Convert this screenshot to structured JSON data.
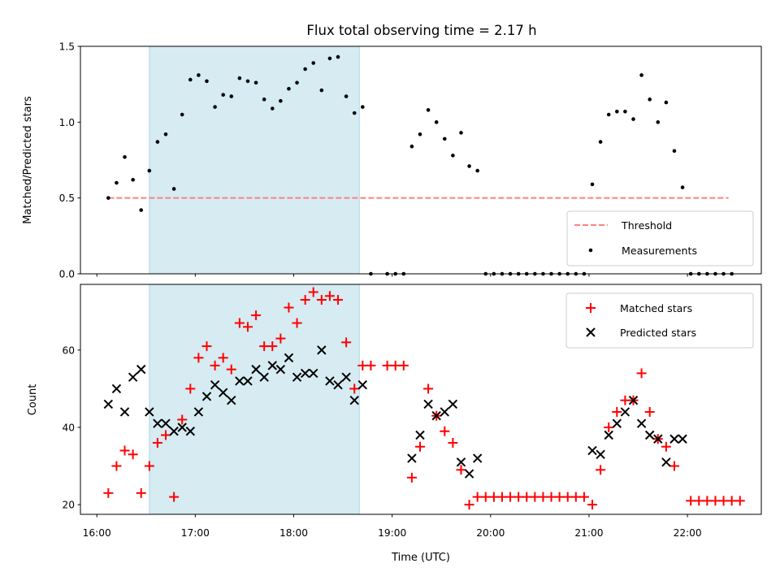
{
  "chart_data": [
    {
      "type": "scatter",
      "title": "Flux total observing time = 2.17 h",
      "xlabel": "",
      "ylabel": "Matched/Predicted stars",
      "xlim": [
        "15:50",
        "22:45"
      ],
      "ylim": [
        0,
        1.5
      ],
      "yticks": [
        "0.0",
        "0.5",
        "1.0",
        "1.5"
      ],
      "shaded_interval": [
        "16:32",
        "18:40"
      ],
      "legend_position": "lower-right",
      "threshold": {
        "name": "Threshold",
        "color": "#ff8080",
        "style": "dashed",
        "value": 0.5,
        "x_range": [
          "16:07",
          "22:25"
        ]
      },
      "series": [
        {
          "name": "Measurements",
          "color": "#000000",
          "marker": "dot",
          "points": [
            [
              "16:07",
              0.5
            ],
            [
              "16:12",
              0.6
            ],
            [
              "16:17",
              0.77
            ],
            [
              "16:22",
              0.62
            ],
            [
              "16:27",
              0.42
            ],
            [
              "16:32",
              0.68
            ],
            [
              "16:37",
              0.87
            ],
            [
              "16:42",
              0.92
            ],
            [
              "16:47",
              0.56
            ],
            [
              "16:52",
              1.05
            ],
            [
              "16:57",
              1.28
            ],
            [
              "17:02",
              1.31
            ],
            [
              "17:07",
              1.27
            ],
            [
              "17:12",
              1.1
            ],
            [
              "17:17",
              1.18
            ],
            [
              "17:22",
              1.17
            ],
            [
              "17:27",
              1.29
            ],
            [
              "17:32",
              1.27
            ],
            [
              "17:37",
              1.26
            ],
            [
              "17:42",
              1.15
            ],
            [
              "17:47",
              1.09
            ],
            [
              "17:52",
              1.14
            ],
            [
              "17:57",
              1.22
            ],
            [
              "18:02",
              1.26
            ],
            [
              "18:07",
              1.35
            ],
            [
              "18:12",
              1.39
            ],
            [
              "18:17",
              1.21
            ],
            [
              "18:22",
              1.42
            ],
            [
              "18:27",
              1.43
            ],
            [
              "18:32",
              1.17
            ],
            [
              "18:37",
              1.06
            ],
            [
              "18:42",
              1.1
            ],
            [
              "18:47",
              0
            ],
            [
              "18:57",
              0
            ],
            [
              "19:02",
              0
            ],
            [
              "19:07",
              0
            ],
            [
              "19:12",
              0.84
            ],
            [
              "19:17",
              0.92
            ],
            [
              "19:22",
              1.08
            ],
            [
              "19:27",
              1.0
            ],
            [
              "19:32",
              0.89
            ],
            [
              "19:37",
              0.78
            ],
            [
              "19:42",
              0.93
            ],
            [
              "19:47",
              0.71
            ],
            [
              "19:52",
              0.68
            ],
            [
              "19:57",
              0
            ],
            [
              "20:02",
              0
            ],
            [
              "20:07",
              0
            ],
            [
              "20:12",
              0
            ],
            [
              "20:17",
              0
            ],
            [
              "20:22",
              0
            ],
            [
              "20:27",
              0
            ],
            [
              "20:32",
              0
            ],
            [
              "20:37",
              0
            ],
            [
              "20:42",
              0
            ],
            [
              "20:47",
              0
            ],
            [
              "20:52",
              0
            ],
            [
              "20:57",
              0
            ],
            [
              "21:02",
              0.59
            ],
            [
              "21:07",
              0.87
            ],
            [
              "21:12",
              1.05
            ],
            [
              "21:17",
              1.07
            ],
            [
              "21:22",
              1.07
            ],
            [
              "21:27",
              1.02
            ],
            [
              "21:32",
              1.31
            ],
            [
              "21:37",
              1.15
            ],
            [
              "21:42",
              1.0
            ],
            [
              "21:47",
              1.13
            ],
            [
              "21:52",
              0.81
            ],
            [
              "21:57",
              0.57
            ],
            [
              "22:02",
              0
            ],
            [
              "22:07",
              0
            ],
            [
              "22:12",
              0
            ],
            [
              "22:17",
              0
            ],
            [
              "22:22",
              0
            ],
            [
              "22:27",
              0
            ]
          ]
        }
      ]
    },
    {
      "type": "scatter",
      "title": "",
      "xlabel": "Time (UTC)",
      "ylabel": "Count",
      "xlim": [
        "15:50",
        "22:45"
      ],
      "xticks": [
        "16:00",
        "17:00",
        "18:00",
        "19:00",
        "20:00",
        "21:00",
        "22:00"
      ],
      "ylim": [
        17.5,
        77
      ],
      "yticks": [
        "20",
        "40",
        "60"
      ],
      "shaded_interval": [
        "16:32",
        "18:40"
      ],
      "legend_position": "upper-right",
      "series": [
        {
          "name": "Matched stars",
          "color": "#ff0000",
          "marker": "plus",
          "points": [
            [
              "16:07",
              23
            ],
            [
              "16:12",
              30
            ],
            [
              "16:17",
              34
            ],
            [
              "16:22",
              33
            ],
            [
              "16:27",
              23
            ],
            [
              "16:32",
              30
            ],
            [
              "16:37",
              36
            ],
            [
              "16:42",
              38
            ],
            [
              "16:47",
              22
            ],
            [
              "16:52",
              42
            ],
            [
              "16:57",
              50
            ],
            [
              "17:02",
              58
            ],
            [
              "17:07",
              61
            ],
            [
              "17:12",
              56
            ],
            [
              "17:17",
              58
            ],
            [
              "17:22",
              55
            ],
            [
              "17:27",
              67
            ],
            [
              "17:32",
              66
            ],
            [
              "17:37",
              69
            ],
            [
              "17:42",
              61
            ],
            [
              "17:47",
              61
            ],
            [
              "17:52",
              63
            ],
            [
              "17:57",
              71
            ],
            [
              "18:02",
              67
            ],
            [
              "18:07",
              73
            ],
            [
              "18:12",
              75
            ],
            [
              "18:17",
              73
            ],
            [
              "18:22",
              74
            ],
            [
              "18:27",
              73
            ],
            [
              "18:32",
              62
            ],
            [
              "18:37",
              50
            ],
            [
              "18:42",
              56
            ],
            [
              "18:47",
              56
            ],
            [
              "18:57",
              56
            ],
            [
              "19:02",
              56
            ],
            [
              "19:07",
              56
            ],
            [
              "19:12",
              27
            ],
            [
              "19:17",
              35
            ],
            [
              "19:22",
              50
            ],
            [
              "19:27",
              43
            ],
            [
              "19:32",
              39
            ],
            [
              "19:37",
              36
            ],
            [
              "19:42",
              29
            ],
            [
              "19:47",
              20
            ],
            [
              "19:52",
              22
            ],
            [
              "19:57",
              22
            ],
            [
              "20:02",
              22
            ],
            [
              "20:07",
              22
            ],
            [
              "20:12",
              22
            ],
            [
              "20:17",
              22
            ],
            [
              "20:22",
              22
            ],
            [
              "20:27",
              22
            ],
            [
              "20:32",
              22
            ],
            [
              "20:37",
              22
            ],
            [
              "20:42",
              22
            ],
            [
              "20:47",
              22
            ],
            [
              "20:52",
              22
            ],
            [
              "20:57",
              22
            ],
            [
              "21:02",
              20
            ],
            [
              "21:07",
              29
            ],
            [
              "21:12",
              40
            ],
            [
              "21:17",
              44
            ],
            [
              "21:22",
              47
            ],
            [
              "21:27",
              47
            ],
            [
              "21:32",
              54
            ],
            [
              "21:37",
              44
            ],
            [
              "21:42",
              37
            ],
            [
              "21:47",
              35
            ],
            [
              "21:52",
              30
            ],
            [
              "22:02",
              21
            ],
            [
              "22:07",
              21
            ],
            [
              "22:12",
              21
            ],
            [
              "22:17",
              21
            ],
            [
              "22:22",
              21
            ],
            [
              "22:27",
              21
            ],
            [
              "22:32",
              21
            ]
          ]
        },
        {
          "name": "Predicted stars",
          "color": "#000000",
          "marker": "x",
          "points": [
            [
              "16:07",
              46
            ],
            [
              "16:12",
              50
            ],
            [
              "16:17",
              44
            ],
            [
              "16:22",
              53
            ],
            [
              "16:27",
              55
            ],
            [
              "16:32",
              44
            ],
            [
              "16:37",
              41
            ],
            [
              "16:42",
              41
            ],
            [
              "16:47",
              39
            ],
            [
              "16:52",
              40
            ],
            [
              "16:57",
              39
            ],
            [
              "17:02",
              44
            ],
            [
              "17:07",
              48
            ],
            [
              "17:12",
              51
            ],
            [
              "17:17",
              49
            ],
            [
              "17:22",
              47
            ],
            [
              "17:27",
              52
            ],
            [
              "17:32",
              52
            ],
            [
              "17:37",
              55
            ],
            [
              "17:42",
              53
            ],
            [
              "17:47",
              56
            ],
            [
              "17:52",
              55
            ],
            [
              "17:57",
              58
            ],
            [
              "18:02",
              53
            ],
            [
              "18:07",
              54
            ],
            [
              "18:12",
              54
            ],
            [
              "18:17",
              60
            ],
            [
              "18:22",
              52
            ],
            [
              "18:27",
              51
            ],
            [
              "18:32",
              53
            ],
            [
              "18:37",
              47
            ],
            [
              "18:42",
              51
            ],
            [
              "19:12",
              32
            ],
            [
              "19:17",
              38
            ],
            [
              "19:22",
              46
            ],
            [
              "19:27",
              43
            ],
            [
              "19:32",
              44
            ],
            [
              "19:37",
              46
            ],
            [
              "19:42",
              31
            ],
            [
              "19:47",
              28
            ],
            [
              "19:52",
              32
            ],
            [
              "21:02",
              34
            ],
            [
              "21:07",
              33
            ],
            [
              "21:12",
              38
            ],
            [
              "21:17",
              41
            ],
            [
              "21:22",
              44
            ],
            [
              "21:27",
              47
            ],
            [
              "21:32",
              41
            ],
            [
              "21:37",
              38
            ],
            [
              "21:42",
              37
            ],
            [
              "21:47",
              31
            ],
            [
              "21:52",
              37
            ],
            [
              "21:57",
              37
            ]
          ]
        }
      ]
    }
  ]
}
